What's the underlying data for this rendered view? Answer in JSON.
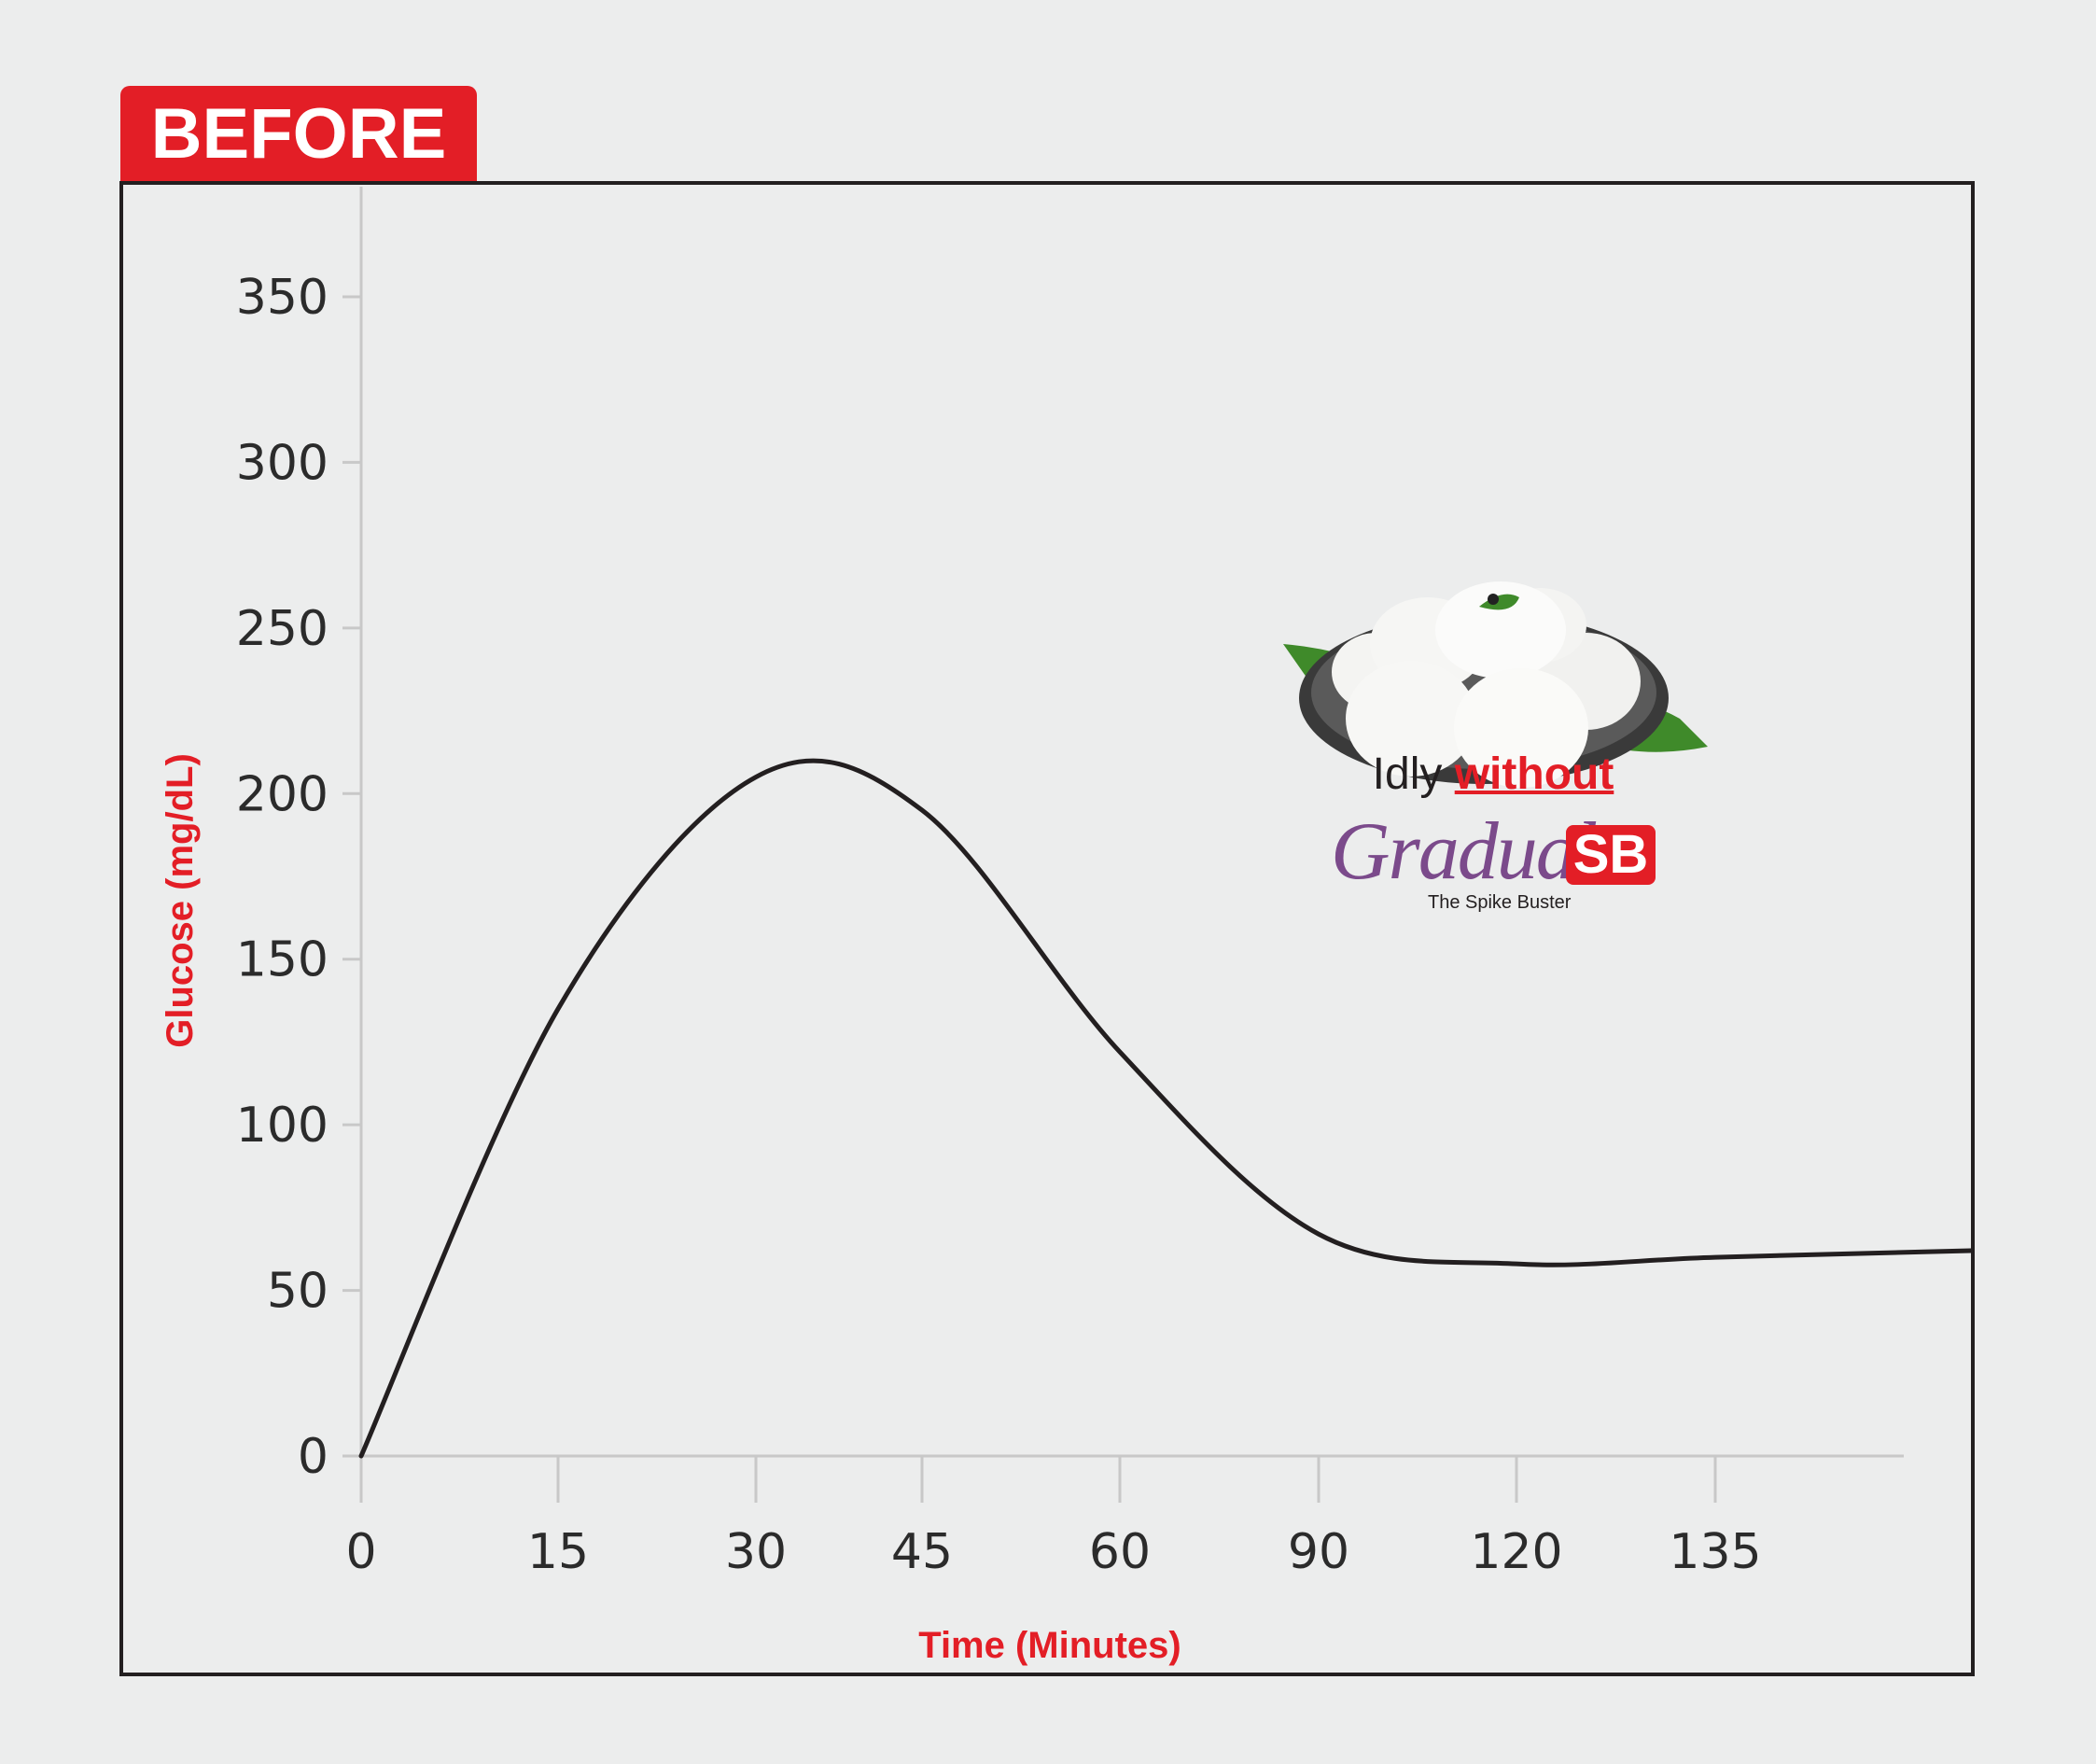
{
  "badge": {
    "label": "BEFORE"
  },
  "legend": {
    "caption_prefix": "Idly",
    "caption_emphasis": "without",
    "brand_name": "Gradual",
    "brand_badge": "SB",
    "brand_tagline": "The Spike Buster",
    "image_icon": "idly-plate-icon"
  },
  "colors": {
    "accent": "#e31e26",
    "line": "#231f20",
    "axis": "#c8c8c8",
    "brand_purple": "#7b4a8b",
    "background": "#eceded"
  },
  "chart_data": {
    "type": "line",
    "xlabel": "Time (Minutes)",
    "ylabel": "Glucose (mg/dL)",
    "x_ticks": [
      "0",
      "15",
      "30",
      "45",
      "60",
      "90",
      "120",
      "135"
    ],
    "y_ticks": [
      0,
      50,
      100,
      150,
      200,
      250,
      300,
      350
    ],
    "ylim": [
      0,
      350
    ],
    "grid": false,
    "series": [
      {
        "x": [
          "0",
          "15",
          "30",
          "45",
          "60",
          "90",
          "120",
          "135"
        ],
        "values": [
          0,
          135,
          205,
          195,
          122,
          67,
          58,
          60
        ]
      }
    ]
  }
}
